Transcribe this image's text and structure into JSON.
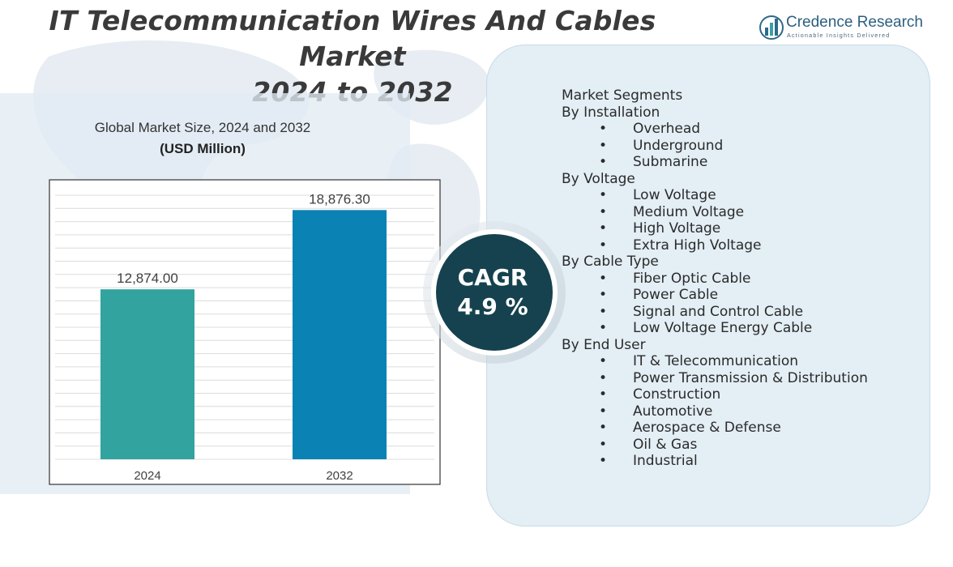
{
  "title_line1": "IT Telecommunication Wires And Cables Market",
  "title_line2": "2024 to 2032",
  "logo": {
    "name": "Credence Research",
    "tagline": "Actionable Insights Delivered",
    "icon": "bar-chart-logo-icon"
  },
  "chart_header": {
    "title": "Global Market Size, 2024 and 2032",
    "subtitle": "(USD Million)"
  },
  "chart_data": {
    "type": "bar",
    "title": "Global Market Size, 2024 and 2032",
    "subtitle": "(USD Million)",
    "categories": [
      "2024",
      "2032"
    ],
    "values": [
      12874.0,
      18876.3
    ],
    "value_labels": [
      "12,874.00",
      "18,876.30"
    ],
    "colors": [
      "#33a3a0",
      "#0a82b4"
    ],
    "ylim": [
      0,
      20000
    ],
    "grid": true,
    "xlabel": "",
    "ylabel": ""
  },
  "cagr": {
    "label": "CAGR",
    "value": "4.9 %"
  },
  "segments": {
    "title": "Market Segments",
    "bullet": "•",
    "groups": [
      {
        "heading": "By Installation",
        "items": [
          "Overhead",
          "Underground",
          "Submarine"
        ]
      },
      {
        "heading": "By Voltage",
        "items": [
          "Low Voltage",
          "Medium Voltage",
          "High Voltage",
          "Extra High Voltage"
        ]
      },
      {
        "heading": "By Cable Type",
        "items": [
          "Fiber Optic Cable",
          "Power Cable",
          "Signal and Control Cable",
          "Low Voltage Energy Cable"
        ]
      },
      {
        "heading": "By End User",
        "items": [
          "IT & Telecommunication",
          "Power Transmission & Distribution",
          "Construction",
          "Automotive",
          "Aerospace & Defense",
          "Oil & Gas",
          "Industrial"
        ]
      }
    ]
  }
}
